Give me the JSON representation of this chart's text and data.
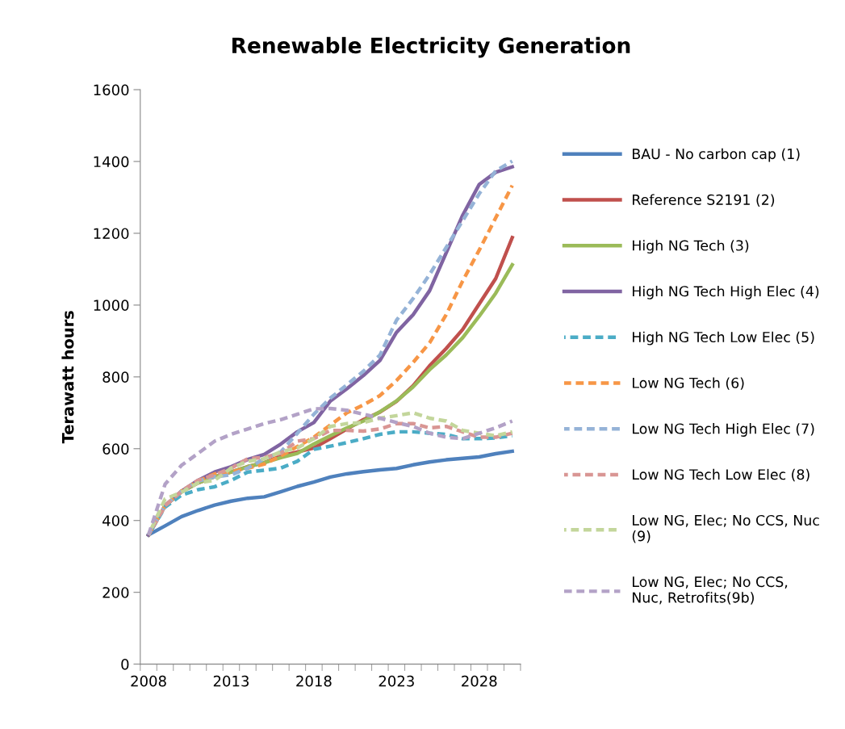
{
  "chart_data": {
    "type": "line",
    "title": "Renewable Electricity Generation",
    "ylabel": "Terawatt hours",
    "categories": [
      "2008",
      null,
      null,
      null,
      null,
      "2013",
      null,
      null,
      null,
      null,
      "2018",
      null,
      null,
      null,
      null,
      "2023",
      null,
      null,
      null,
      null,
      "2028",
      null,
      null
    ],
    "ylim": [
      0,
      1600
    ],
    "yticks": [
      0,
      200,
      400,
      600,
      800,
      1000,
      1200,
      1400,
      1600
    ],
    "grid": false,
    "legend": "right",
    "marker": "none",
    "series": [
      {
        "name": "BAU - No carbon cap (1)",
        "color": "#4f81bd",
        "line_style": "solid",
        "values": [
          360,
          385,
          411,
          428,
          443,
          454,
          462,
          466,
          480,
          495,
          507,
          521,
          530,
          536,
          541,
          545,
          555,
          563,
          569,
          573,
          577,
          586,
          593
        ]
      },
      {
        "name": "Reference S2191 (2)",
        "color": "#c0504d",
        "line_style": "solid",
        "values": [
          360,
          441,
          480,
          505,
          522,
          535,
          550,
          561,
          580,
          591,
          602,
          628,
          655,
          681,
          702,
          732,
          775,
          831,
          879,
          932,
          1003,
          1074,
          1188
        ]
      },
      {
        "name": "High NG Tech (3)",
        "color": "#9bbb59",
        "line_style": "solid",
        "values": [
          360,
          441,
          480,
          505,
          522,
          535,
          550,
          561,
          575,
          587,
          613,
          636,
          658,
          677,
          703,
          733,
          772,
          820,
          861,
          909,
          969,
          1033,
          1112
        ]
      },
      {
        "name": "High NG Tech High Elec (4)",
        "color": "#8064a2",
        "line_style": "solid",
        "values": [
          360,
          441,
          482,
          512,
          535,
          550,
          570,
          584,
          613,
          647,
          673,
          733,
          767,
          804,
          846,
          924,
          973,
          1040,
          1145,
          1250,
          1336,
          1370,
          1385
        ]
      },
      {
        "name": "High NG Tech Low Elec (5)",
        "color": "#4bacc6",
        "line_style": "dashed",
        "values": [
          360,
          437,
          471,
          486,
          494,
          512,
          535,
          540,
          546,
          565,
          598,
          607,
          617,
          628,
          640,
          647,
          647,
          643,
          640,
          628,
          628,
          630,
          636
        ]
      },
      {
        "name": "Low NG Tech (6)",
        "color": "#f79646",
        "line_style": "dashed",
        "values": [
          360,
          441,
          482,
          510,
          530,
          535,
          546,
          557,
          580,
          606,
          632,
          666,
          700,
          722,
          748,
          790,
          840,
          895,
          973,
          1067,
          1153,
          1243,
          1333
        ]
      },
      {
        "name": "Low NG Tech High Elec (7)",
        "color": "#95b3d7",
        "line_style": "dashed",
        "values": [
          360,
          441,
          482,
          510,
          522,
          527,
          546,
          572,
          591,
          643,
          696,
          741,
          778,
          816,
          861,
          958,
          1018,
          1085,
          1160,
          1235,
          1310,
          1374,
          1401
        ]
      },
      {
        "name": "Low NG Tech Low Elec (8)",
        "color": "#d99694",
        "line_style": "dashed",
        "values": [
          360,
          441,
          482,
          512,
          527,
          546,
          572,
          576,
          587,
          621,
          628,
          651,
          651,
          649,
          655,
          670,
          670,
          658,
          662,
          647,
          632,
          632,
          643
        ]
      },
      {
        "name": "Low NG, Elec; No CCS, Nuc\n(9)",
        "color": "#c3d69b",
        "line_style": "dashed",
        "values": [
          360,
          460,
          479,
          505,
          512,
          546,
          565,
          572,
          591,
          602,
          628,
          662,
          670,
          673,
          685,
          692,
          700,
          685,
          677,
          651,
          643,
          636,
          647
        ]
      },
      {
        "name": "Low NG, Elec; No CCS,\nNuc, Retrofits(9b)",
        "color": "#b3a2c7",
        "line_style": "dashed",
        "values": [
          360,
          501,
          554,
          587,
          621,
          640,
          655,
          670,
          681,
          696,
          711,
          712,
          707,
          696,
          685,
          673,
          662,
          643,
          632,
          628,
          643,
          658,
          677
        ]
      }
    ]
  }
}
